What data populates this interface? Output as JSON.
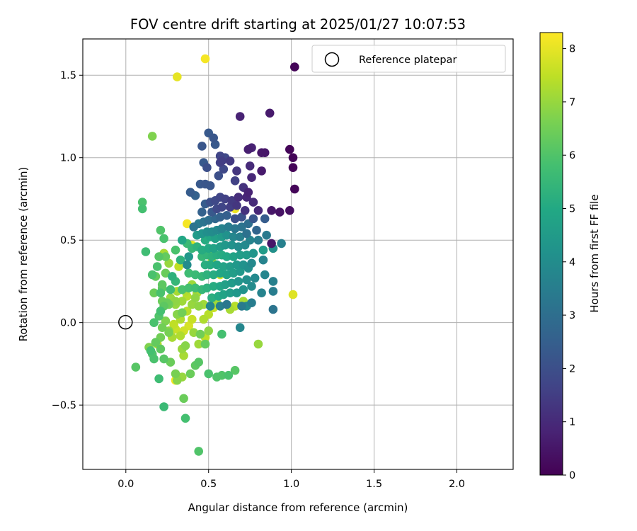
{
  "chart_data": {
    "type": "scatter",
    "title": "FOV centre drift starting at 2025/01/27 10:07:53",
    "xlabel": "Angular distance from reference (arcmin)",
    "ylabel": "Rotation from reference (arcmin)",
    "xlim": [
      -0.26,
      2.34
    ],
    "ylim": [
      -0.89,
      1.72
    ],
    "xticks": [
      0.0,
      0.5,
      1.0,
      1.5,
      2.0
    ],
    "xtick_labels": [
      "0.0",
      "0.5",
      "1.0",
      "1.5",
      "2.0"
    ],
    "yticks": [
      -0.5,
      0.0,
      0.5,
      1.0,
      1.5
    ],
    "ytick_labels": [
      "−0.5",
      "0.0",
      "0.5",
      "1.0",
      "1.5"
    ],
    "grid": true,
    "legend": {
      "placement": "top-right",
      "entries": [
        {
          "label": "Reference platepar",
          "marker": "open-circle",
          "x": 0.0,
          "y": 0.0
        }
      ]
    },
    "colorbar": {
      "label": "Hours from first FF file",
      "colormap": "viridis",
      "range": [
        0,
        8.3
      ],
      "ticks": [
        0,
        1,
        2,
        3,
        4,
        5,
        6,
        7,
        8
      ],
      "tick_labels": [
        "0",
        "1",
        "2",
        "3",
        "4",
        "5",
        "6",
        "7",
        "8"
      ]
    },
    "points": [
      [
        1.02,
        1.55,
        0.1
      ],
      [
        1.01,
        1.0,
        0.1
      ],
      [
        1.02,
        0.81,
        0.1
      ],
      [
        0.99,
        1.05,
        0.1
      ],
      [
        1.01,
        0.94,
        0.1
      ],
      [
        0.99,
        0.68,
        0.3
      ],
      [
        0.93,
        0.67,
        0.4
      ],
      [
        0.88,
        0.68,
        0.5
      ],
      [
        0.87,
        1.27,
        0.6
      ],
      [
        0.84,
        1.03,
        0.5
      ],
      [
        0.82,
        1.03,
        0.5
      ],
      [
        0.82,
        0.92,
        0.6
      ],
      [
        0.88,
        0.48,
        0.5
      ],
      [
        0.76,
        1.06,
        0.8
      ],
      [
        0.74,
        1.05,
        0.7
      ],
      [
        0.69,
        1.25,
        0.8
      ],
      [
        0.75,
        0.95,
        1.0
      ],
      [
        0.76,
        0.88,
        0.9
      ],
      [
        0.74,
        0.79,
        0.8
      ],
      [
        0.71,
        0.82,
        1.2
      ],
      [
        0.67,
        0.92,
        1.3
      ],
      [
        0.63,
        0.98,
        1.4
      ],
      [
        0.58,
        0.98,
        1.5
      ],
      [
        0.57,
        1.01,
        1.7
      ],
      [
        0.6,
        1.0,
        1.8
      ],
      [
        0.57,
        0.97,
        1.6
      ],
      [
        0.59,
        0.93,
        1.8
      ],
      [
        0.56,
        0.89,
        2.0
      ],
      [
        0.53,
        1.12,
        2.2
      ],
      [
        0.5,
        1.15,
        2.3
      ],
      [
        0.46,
        1.07,
        2.2
      ],
      [
        0.49,
        0.94,
        2.0
      ],
      [
        0.47,
        0.97,
        2.3
      ],
      [
        0.45,
        0.84,
        2.3
      ],
      [
        0.48,
        0.84,
        2.2
      ],
      [
        0.51,
        0.83,
        2.2
      ],
      [
        0.54,
        1.08,
        2.3
      ],
      [
        0.66,
        0.86,
        1.6
      ],
      [
        0.73,
        0.76,
        0.9
      ],
      [
        0.68,
        0.76,
        1.1
      ],
      [
        0.64,
        0.74,
        1.4
      ],
      [
        0.6,
        0.75,
        1.6
      ],
      [
        0.57,
        0.76,
        1.7
      ],
      [
        0.54,
        0.74,
        1.8
      ],
      [
        0.51,
        0.73,
        2.0
      ],
      [
        0.77,
        0.73,
        1.0
      ],
      [
        0.8,
        0.68,
        0.9
      ],
      [
        0.72,
        0.68,
        1.2
      ],
      [
        0.67,
        0.71,
        1.3
      ],
      [
        0.63,
        0.7,
        1.5
      ],
      [
        0.58,
        0.7,
        1.7
      ],
      [
        0.55,
        0.69,
        1.8
      ],
      [
        0.52,
        0.67,
        2.3
      ],
      [
        0.48,
        0.72,
        2.4
      ],
      [
        0.46,
        0.67,
        2.6
      ],
      [
        0.39,
        0.79,
        2.4
      ],
      [
        0.42,
        0.77,
        2.6
      ],
      [
        0.84,
        0.63,
        2.4
      ],
      [
        0.77,
        0.63,
        2.2
      ],
      [
        0.7,
        0.64,
        2.1
      ],
      [
        0.66,
        0.63,
        2.0
      ],
      [
        0.61,
        0.65,
        2.5
      ],
      [
        0.57,
        0.64,
        2.6
      ],
      [
        0.54,
        0.63,
        2.8
      ],
      [
        0.5,
        0.62,
        3.0
      ],
      [
        0.47,
        0.61,
        3.2
      ],
      [
        0.44,
        0.6,
        3.4
      ],
      [
        0.41,
        0.58,
        3.2
      ],
      [
        0.74,
        0.6,
        3.0
      ],
      [
        0.7,
        0.58,
        3.2
      ],
      [
        0.66,
        0.57,
        3.3
      ],
      [
        0.62,
        0.58,
        3.5
      ],
      [
        0.58,
        0.57,
        3.7
      ],
      [
        0.55,
        0.56,
        3.9
      ],
      [
        0.52,
        0.55,
        4.0
      ],
      [
        0.49,
        0.55,
        4.1
      ],
      [
        0.46,
        0.54,
        4.3
      ],
      [
        0.43,
        0.53,
        4.5
      ],
      [
        0.79,
        0.56,
        2.7
      ],
      [
        0.73,
        0.54,
        3.1
      ],
      [
        0.69,
        0.52,
        3.6
      ],
      [
        0.65,
        0.52,
        3.8
      ],
      [
        0.61,
        0.53,
        4.2
      ],
      [
        0.58,
        0.52,
        4.5
      ],
      [
        0.54,
        0.51,
        4.7
      ],
      [
        0.51,
        0.52,
        4.9
      ],
      [
        0.48,
        0.5,
        5.1
      ],
      [
        0.85,
        0.53,
        3.4
      ],
      [
        0.8,
        0.5,
        3.5
      ],
      [
        0.75,
        0.5,
        3.7
      ],
      [
        0.72,
        0.47,
        3.9
      ],
      [
        0.68,
        0.46,
        4.0
      ],
      [
        0.64,
        0.47,
        4.2
      ],
      [
        0.6,
        0.47,
        4.4
      ],
      [
        0.57,
        0.46,
        4.6
      ],
      [
        0.53,
        0.45,
        4.8
      ],
      [
        0.5,
        0.45,
        5.0
      ],
      [
        0.46,
        0.44,
        5.1
      ],
      [
        0.43,
        0.46,
        5.3
      ],
      [
        0.4,
        0.45,
        5.5
      ],
      [
        0.37,
        0.48,
        5.6
      ],
      [
        0.94,
        0.48,
        3.6
      ],
      [
        0.89,
        0.45,
        4.1
      ],
      [
        0.83,
        0.44,
        4.5
      ],
      [
        0.77,
        0.42,
        4.3
      ],
      [
        0.73,
        0.41,
        4.5
      ],
      [
        0.69,
        0.41,
        4.6
      ],
      [
        0.65,
        0.4,
        4.8
      ],
      [
        0.61,
        0.4,
        5.0
      ],
      [
        0.58,
        0.41,
        5.1
      ],
      [
        0.55,
        0.41,
        5.2
      ],
      [
        0.52,
        0.4,
        5.3
      ],
      [
        0.49,
        0.41,
        5.4
      ],
      [
        0.46,
        0.4,
        5.5
      ],
      [
        0.83,
        0.38,
        3.7
      ],
      [
        0.76,
        0.36,
        3.9
      ],
      [
        0.71,
        0.35,
        4.2
      ],
      [
        0.67,
        0.35,
        4.4
      ],
      [
        0.63,
        0.34,
        4.6
      ],
      [
        0.59,
        0.34,
        4.8
      ],
      [
        0.55,
        0.35,
        4.9
      ],
      [
        0.51,
        0.35,
        5.1
      ],
      [
        0.48,
        0.35,
        5.2
      ],
      [
        0.74,
        0.33,
        4.1
      ],
      [
        0.69,
        0.31,
        4.4
      ],
      [
        0.65,
        0.3,
        4.6
      ],
      [
        0.61,
        0.29,
        4.8
      ],
      [
        0.57,
        0.3,
        4.9
      ],
      [
        0.53,
        0.29,
        5.1
      ],
      [
        0.49,
        0.29,
        5.3
      ],
      [
        0.46,
        0.28,
        5.5
      ],
      [
        0.42,
        0.29,
        5.6
      ],
      [
        0.38,
        0.3,
        5.7
      ],
      [
        0.84,
        0.29,
        3.8
      ],
      [
        0.89,
        0.25,
        3.6
      ],
      [
        0.78,
        0.27,
        3.9
      ],
      [
        0.73,
        0.26,
        4.1
      ],
      [
        0.68,
        0.25,
        4.3
      ],
      [
        0.64,
        0.24,
        4.5
      ],
      [
        0.6,
        0.23,
        4.7
      ],
      [
        0.57,
        0.22,
        4.9
      ],
      [
        0.53,
        0.22,
        5.1
      ],
      [
        0.49,
        0.21,
        5.3
      ],
      [
        0.46,
        0.2,
        5.5
      ],
      [
        0.42,
        0.21,
        5.7
      ],
      [
        0.38,
        0.21,
        5.8
      ],
      [
        0.34,
        0.2,
        5.9
      ],
      [
        0.76,
        0.22,
        4.0
      ],
      [
        0.71,
        0.2,
        4.2
      ],
      [
        0.67,
        0.18,
        4.4
      ],
      [
        0.63,
        0.18,
        4.6
      ],
      [
        0.59,
        0.17,
        4.8
      ],
      [
        0.56,
        0.16,
        5.0
      ],
      [
        0.52,
        0.15,
        5.2
      ],
      [
        0.89,
        0.19,
        3.5
      ],
      [
        0.82,
        0.18,
        3.7
      ],
      [
        0.76,
        0.12,
        3.5
      ],
      [
        0.7,
        0.1,
        3.4
      ],
      [
        0.61,
        0.11,
        3.3
      ],
      [
        0.57,
        0.1,
        3.6
      ],
      [
        0.51,
        0.1,
        3.8
      ],
      [
        0.89,
        0.08,
        3.2
      ],
      [
        0.73,
        0.1,
        3.9
      ],
      [
        0.69,
        -0.03,
        3.8
      ],
      [
        0.58,
        -0.07,
        5.8
      ],
      [
        0.34,
        0.5,
        4.9
      ],
      [
        0.38,
        0.4,
        4.4
      ],
      [
        0.37,
        0.35,
        4.0
      ],
      [
        0.33,
        0.38,
        5.3
      ],
      [
        0.3,
        0.44,
        5.9
      ],
      [
        0.3,
        0.25,
        5.5
      ],
      [
        0.27,
        0.2,
        5.7
      ],
      [
        0.21,
        0.56,
        6.0
      ],
      [
        0.23,
        0.51,
        5.9
      ],
      [
        0.2,
        0.4,
        6.1
      ],
      [
        0.24,
        0.4,
        6.3
      ],
      [
        0.19,
        0.34,
        5.9
      ],
      [
        0.24,
        0.3,
        6.4
      ],
      [
        0.18,
        0.28,
        6.3
      ],
      [
        0.22,
        0.23,
        6.2
      ],
      [
        0.21,
        0.18,
        5.9
      ],
      [
        0.23,
        0.1,
        6.2
      ],
      [
        0.21,
        0.07,
        5.8
      ],
      [
        0.2,
        0.04,
        6.0
      ],
      [
        0.17,
        0.0,
        5.9
      ],
      [
        0.17,
        0.18,
        6.4
      ],
      [
        0.22,
        0.13,
        6.4
      ],
      [
        0.25,
        0.12,
        6.4
      ],
      [
        0.26,
        0.11,
        6.5
      ],
      [
        0.31,
        0.05,
        6.8
      ],
      [
        0.34,
        0.06,
        6.5
      ],
      [
        0.3,
        0.13,
        6.9
      ],
      [
        0.27,
        0.15,
        7.0
      ],
      [
        0.31,
        0.19,
        7.2
      ],
      [
        0.36,
        0.19,
        7.3
      ],
      [
        0.4,
        0.23,
        7.1
      ],
      [
        0.43,
        0.18,
        7.2
      ],
      [
        0.37,
        0.16,
        7.4
      ],
      [
        0.34,
        0.13,
        7.1
      ],
      [
        0.4,
        0.11,
        7.0
      ],
      [
        0.44,
        0.1,
        6.9
      ],
      [
        0.47,
        0.11,
        7.1
      ],
      [
        0.37,
        0.07,
        7.4
      ],
      [
        0.33,
        0.02,
        7.3
      ],
      [
        0.29,
        -0.01,
        7.5
      ],
      [
        0.24,
        0.01,
        6.7
      ],
      [
        0.22,
        -0.03,
        6.5
      ],
      [
        0.26,
        -0.06,
        6.6
      ],
      [
        0.21,
        -0.09,
        6.5
      ],
      [
        0.18,
        -0.12,
        6.3
      ],
      [
        0.21,
        -0.16,
        6.2
      ],
      [
        0.16,
        -0.19,
        6.0
      ],
      [
        0.17,
        -0.22,
        5.9
      ],
      [
        0.23,
        -0.22,
        6.1
      ],
      [
        0.27,
        -0.24,
        6.4
      ],
      [
        0.3,
        -0.31,
        6.6
      ],
      [
        0.31,
        -0.35,
        6.8
      ],
      [
        0.34,
        -0.33,
        7.0
      ],
      [
        0.39,
        -0.31,
        6.4
      ],
      [
        0.42,
        -0.26,
        6.2
      ],
      [
        0.44,
        -0.24,
        6.1
      ],
      [
        0.5,
        -0.31,
        5.9
      ],
      [
        0.58,
        -0.32,
        6.0
      ],
      [
        0.66,
        -0.29,
        6.1
      ],
      [
        0.48,
        -0.13,
        6.3
      ],
      [
        0.45,
        -0.07,
        6.5
      ],
      [
        0.5,
        -0.05,
        6.9
      ],
      [
        0.47,
        0.02,
        7.3
      ],
      [
        0.5,
        0.05,
        7.4
      ],
      [
        0.53,
        0.09,
        7.6
      ],
      [
        0.55,
        0.12,
        7.1
      ],
      [
        0.63,
        0.08,
        7.2
      ],
      [
        0.66,
        0.1,
        7.4
      ],
      [
        0.71,
        0.13,
        7.2
      ],
      [
        0.8,
        -0.13,
        7.0
      ],
      [
        0.34,
        -0.16,
        7.0
      ],
      [
        0.35,
        -0.2,
        7.2
      ],
      [
        0.36,
        -0.14,
        6.8
      ],
      [
        0.41,
        -0.06,
        7.0
      ],
      [
        0.44,
        -0.13,
        7.1
      ],
      [
        0.48,
        -0.09,
        7.5
      ],
      [
        0.3,
        -0.04,
        7.6
      ],
      [
        0.35,
        -0.05,
        7.7
      ],
      [
        0.38,
        -0.02,
        7.8
      ],
      [
        0.4,
        0.02,
        7.6
      ],
      [
        0.33,
        -0.08,
        7.3
      ],
      [
        0.28,
        -0.09,
        7.2
      ],
      [
        0.26,
        -0.05,
        6.9
      ],
      [
        0.3,
        0.11,
        7.0
      ],
      [
        0.42,
        0.15,
        6.9
      ],
      [
        0.52,
        0.37,
        7.3
      ],
      [
        0.51,
        0.44,
        7.6
      ],
      [
        0.4,
        0.47,
        7.9
      ],
      [
        0.37,
        0.6,
        8.2
      ],
      [
        0.66,
        0.69,
        8.1
      ],
      [
        0.57,
        0.29,
        7.8
      ],
      [
        0.89,
        0.45,
        7.1
      ],
      [
        1.01,
        0.17,
        7.9
      ],
      [
        0.3,
        -0.35,
        8.2
      ],
      [
        0.31,
        1.49,
        8.0
      ],
      [
        0.48,
        1.6,
        8.2
      ],
      [
        0.16,
        1.13,
        6.7
      ],
      [
        0.1,
        0.73,
        5.9
      ],
      [
        0.1,
        0.69,
        5.8
      ],
      [
        0.12,
        0.43,
        5.7
      ],
      [
        0.16,
        0.29,
        5.9
      ],
      [
        0.06,
        -0.27,
        6.1
      ],
      [
        0.23,
        -0.51,
        5.6
      ],
      [
        0.35,
        -0.46,
        6.4
      ],
      [
        0.36,
        -0.58,
        5.8
      ],
      [
        0.2,
        -0.34,
        5.7
      ],
      [
        0.44,
        -0.78,
        6.0
      ],
      [
        0.22,
        0.21,
        6.2
      ],
      [
        0.26,
        0.36,
        7.0
      ],
      [
        0.23,
        0.42,
        7.2
      ],
      [
        0.32,
        0.34,
        7.5
      ],
      [
        0.28,
        0.28,
        5.3
      ],
      [
        0.14,
        -0.15,
        6.7
      ],
      [
        0.19,
        -0.13,
        7.3
      ],
      [
        0.15,
        -0.17,
        5.8
      ],
      [
        0.62,
        -0.32,
        5.9
      ],
      [
        0.55,
        -0.33,
        6.0
      ]
    ]
  }
}
